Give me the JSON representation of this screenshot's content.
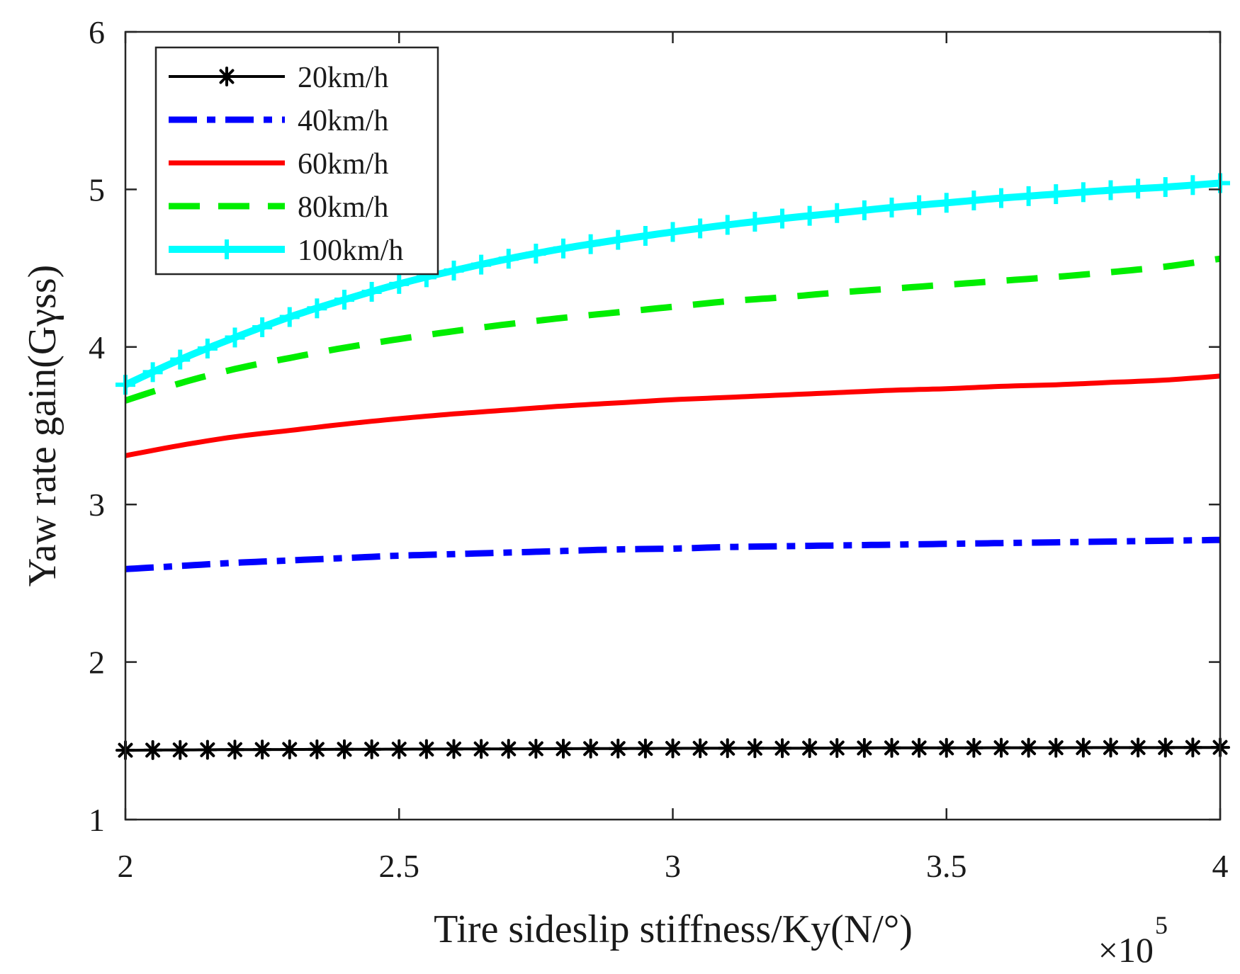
{
  "chart_data": {
    "type": "line",
    "title": "",
    "xlabel": "Tire sideslip stiffness/Ky(N/°)",
    "ylabel": "Yaw rate gain(Gγss)",
    "x_multiplier_base": "×10",
    "x_multiplier_exp": "5",
    "xlim": [
      2,
      4
    ],
    "ylim": [
      1,
      6
    ],
    "x_ticks": [
      2,
      2.5,
      3,
      3.5,
      4
    ],
    "x_tick_labels": [
      "2",
      "2.5",
      "3",
      "3.5",
      "4"
    ],
    "y_ticks": [
      1,
      2,
      3,
      4,
      5,
      6
    ],
    "y_tick_labels": [
      "1",
      "2",
      "3",
      "4",
      "5",
      "6"
    ],
    "grid": false,
    "legend_position": "top-left",
    "x": [
      2.0,
      2.1,
      2.2,
      2.3,
      2.4,
      2.5,
      2.6,
      2.7,
      2.8,
      2.9,
      3.0,
      3.1,
      3.2,
      3.3,
      3.4,
      3.5,
      3.6,
      3.7,
      3.8,
      3.9,
      4.0
    ],
    "series": [
      {
        "name": "20km/h",
        "color": "#000000",
        "style": "solid-star",
        "values": [
          1.44,
          1.442,
          1.444,
          1.445,
          1.446,
          1.447,
          1.448,
          1.449,
          1.45,
          1.451,
          1.452,
          1.453,
          1.453,
          1.454,
          1.455,
          1.455,
          1.456,
          1.456,
          1.457,
          1.457,
          1.458
        ]
      },
      {
        "name": "40km/h",
        "color": "#0000ff",
        "style": "dash-dot",
        "values": [
          2.59,
          2.61,
          2.63,
          2.645,
          2.66,
          2.675,
          2.685,
          2.695,
          2.705,
          2.715,
          2.72,
          2.73,
          2.735,
          2.74,
          2.745,
          2.75,
          2.755,
          2.76,
          2.765,
          2.77,
          2.775
        ]
      },
      {
        "name": "60km/h",
        "color": "#ff0000",
        "style": "solid",
        "values": [
          3.31,
          3.375,
          3.43,
          3.47,
          3.51,
          3.545,
          3.575,
          3.6,
          3.625,
          3.645,
          3.665,
          3.68,
          3.695,
          3.71,
          3.725,
          3.735,
          3.75,
          3.76,
          3.775,
          3.79,
          3.815
        ]
      },
      {
        "name": "80km/h",
        "color": "#00ee00",
        "style": "dashed",
        "values": [
          3.66,
          3.77,
          3.86,
          3.93,
          3.995,
          4.05,
          4.1,
          4.145,
          4.185,
          4.22,
          4.255,
          4.29,
          4.315,
          4.345,
          4.37,
          4.395,
          4.42,
          4.445,
          4.475,
          4.51,
          4.56
        ]
      },
      {
        "name": "100km/h",
        "color": "#00ffff",
        "style": "solid-plus",
        "values": [
          3.76,
          3.92,
          4.06,
          4.19,
          4.3,
          4.4,
          4.485,
          4.56,
          4.625,
          4.68,
          4.73,
          4.775,
          4.815,
          4.85,
          4.885,
          4.915,
          4.945,
          4.97,
          4.995,
          5.015,
          5.04
        ]
      }
    ]
  }
}
